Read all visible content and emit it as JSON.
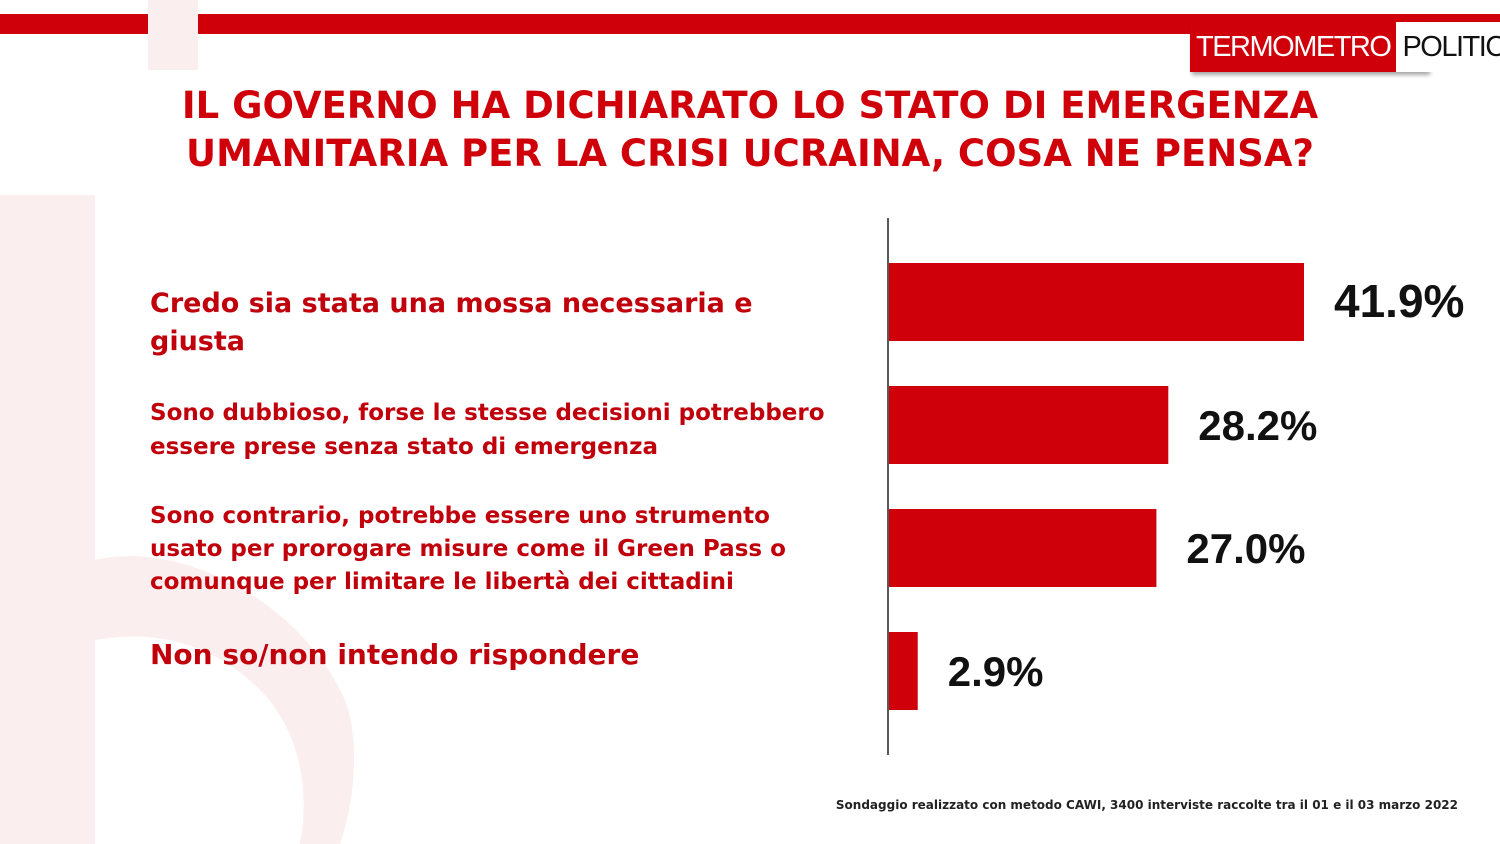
{
  "brand": {
    "logo_part1": "TERMOMETRO",
    "logo_part2": "POLITICO",
    "accent_color": "#d0000a"
  },
  "title_line1": "IL GOVERNO HA DICHIARATO LO STATO DI EMERGENZA",
  "title_line2": "UMANITARIA PER LA CRISI UCRAINA, COSA NE PENSA?",
  "chart_data": {
    "type": "bar",
    "orientation": "horizontal",
    "categories": [
      "Credo sia stata una mossa necessaria e giusta",
      "Sono dubbioso, forse le stesse decisioni potrebbero essere prese senza stato di emergenza",
      "Sono contrario, potrebbe essere uno strumento usato per prorogare misure come il Green Pass o comunque per limitare le libertà  dei cittadini",
      "Non so/non intendo rispondere"
    ],
    "values": [
      41.9,
      28.2,
      27.0,
      2.9
    ],
    "value_labels": [
      "41.9%",
      "28.2%",
      "27.0%",
      "2.9%"
    ],
    "bar_color": "#d0000a",
    "grid": false
  },
  "labels": {
    "row1": [
      "Credo sia stata una mossa necessaria e",
      "giusta"
    ],
    "row2": [
      "Sono dubbioso, forse le stesse decisioni potrebbero",
      "essere prese senza stato di emergenza"
    ],
    "row3": [
      "Sono contrario, potrebbe essere uno strumento",
      "usato per prorogare misure come il Green Pass o",
      "comunque per limitare le libertà  dei cittadini"
    ],
    "row4": [
      "Non so/non intendo rispondere"
    ]
  },
  "footnote": "Sondaggio realizzato con metodo CAWI, 3400 interviste raccolte tra il 01 e il 03 marzo 2022"
}
